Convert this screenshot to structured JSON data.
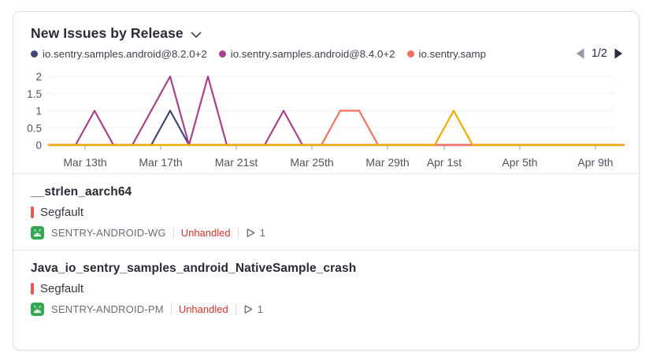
{
  "widget": {
    "title": "New Issues by Release",
    "legend": {
      "items": [
        {
          "label": "io.sentry.samples.android@8.2.0+2",
          "color": "#444674"
        },
        {
          "label": "io.sentry.samples.android@8.4.0+2",
          "color": "#a9418c"
        },
        {
          "label": "io.sentry.samp",
          "color": "#f2705e"
        }
      ]
    },
    "pagination": {
      "label": "1/2",
      "prev_icon": "left-triangle",
      "next_icon": "right-triangle"
    }
  },
  "chart_data": {
    "type": "line",
    "title": "New Issues by Release",
    "xlabel": "",
    "ylabel": "",
    "ylim": [
      0,
      2
    ],
    "grid": true,
    "legend_position": "top",
    "dates": [
      "Mar 11",
      "Mar 12",
      "Mar 13",
      "Mar 14",
      "Mar 15",
      "Mar 16",
      "Mar 17",
      "Mar 18",
      "Mar 19",
      "Mar 20",
      "Mar 21",
      "Mar 22",
      "Mar 23",
      "Mar 24",
      "Mar 25",
      "Mar 26",
      "Mar 27",
      "Mar 28",
      "Mar 29",
      "Mar 30",
      "Mar 31",
      "Apr 1",
      "Apr 2",
      "Apr 3",
      "Apr 4",
      "Apr 5",
      "Apr 6",
      "Apr 7",
      "Apr 8",
      "Apr 9",
      "Apr 10"
    ],
    "x_tick_labels": [
      "Mar 13th",
      "Mar 17th",
      "Mar 21st",
      "Mar 25th",
      "Mar 29th",
      "Apr 1st",
      "Apr 5th",
      "Apr 9th"
    ],
    "x_tick_day_index": [
      2,
      6,
      10,
      14,
      18,
      21,
      25,
      29
    ],
    "y_ticks": [
      0,
      0.5,
      1,
      1.5,
      2
    ],
    "series": [
      {
        "name": "io.sentry.samples.android@8.2.0+2",
        "color": "#444674",
        "values": [
          0,
          0,
          0,
          0,
          0,
          0,
          1,
          0,
          0,
          0,
          0,
          0,
          0,
          0,
          0,
          0,
          0,
          0,
          0,
          0,
          0,
          0,
          0,
          0,
          0,
          0,
          0,
          0,
          0,
          0,
          0
        ]
      },
      {
        "name": "io.sentry.samples.android@8.4.0+2",
        "color": "#a9418c",
        "values": [
          0,
          0,
          1,
          0,
          0,
          1,
          2,
          0,
          2,
          0,
          0,
          0,
          1,
          0,
          0,
          0,
          0,
          0,
          0,
          0,
          0,
          0,
          0,
          0,
          0,
          0,
          0,
          0,
          0,
          0,
          0
        ]
      },
      {
        "name": "io.sentry.samp",
        "color": "#f2705e",
        "values": [
          0,
          0,
          0,
          0,
          0,
          0,
          0,
          0,
          0,
          0,
          0,
          0,
          0,
          0,
          0,
          1,
          1,
          0,
          0,
          0,
          0,
          0,
          0,
          0,
          0,
          0,
          0,
          0,
          0,
          0,
          0
        ]
      },
      {
        "name": "",
        "color": "#efab00",
        "values": [
          0,
          0,
          0,
          0,
          0,
          0,
          0,
          0,
          0,
          0,
          0,
          0,
          0,
          0,
          0,
          0,
          0,
          0,
          0,
          0,
          0,
          1,
          0,
          0,
          0,
          0,
          0,
          0,
          0,
          0,
          0
        ]
      }
    ],
    "axis_text_color": "#564f61",
    "gridline_color": "#f2eff5",
    "tick_color": "#a59dae"
  },
  "issues": [
    {
      "title": "__strlen_aarch64",
      "type": "Segfault",
      "project": "SENTRY-ANDROID-WG",
      "unhandled_label": "Unhandled",
      "event_count": "1"
    },
    {
      "title": "Java_io_sentry_samples_android_NativeSample_crash",
      "type": "Segfault",
      "project": "SENTRY-ANDROID-PM",
      "unhandled_label": "Unhandled",
      "event_count": "1"
    }
  ],
  "colors": {
    "issue_level_bar": "#e8584f",
    "unhandled_text": "#d0342c",
    "android_green": "#34a853",
    "pager_prev": "#9b93a8",
    "pager_next": "#332c3b"
  }
}
